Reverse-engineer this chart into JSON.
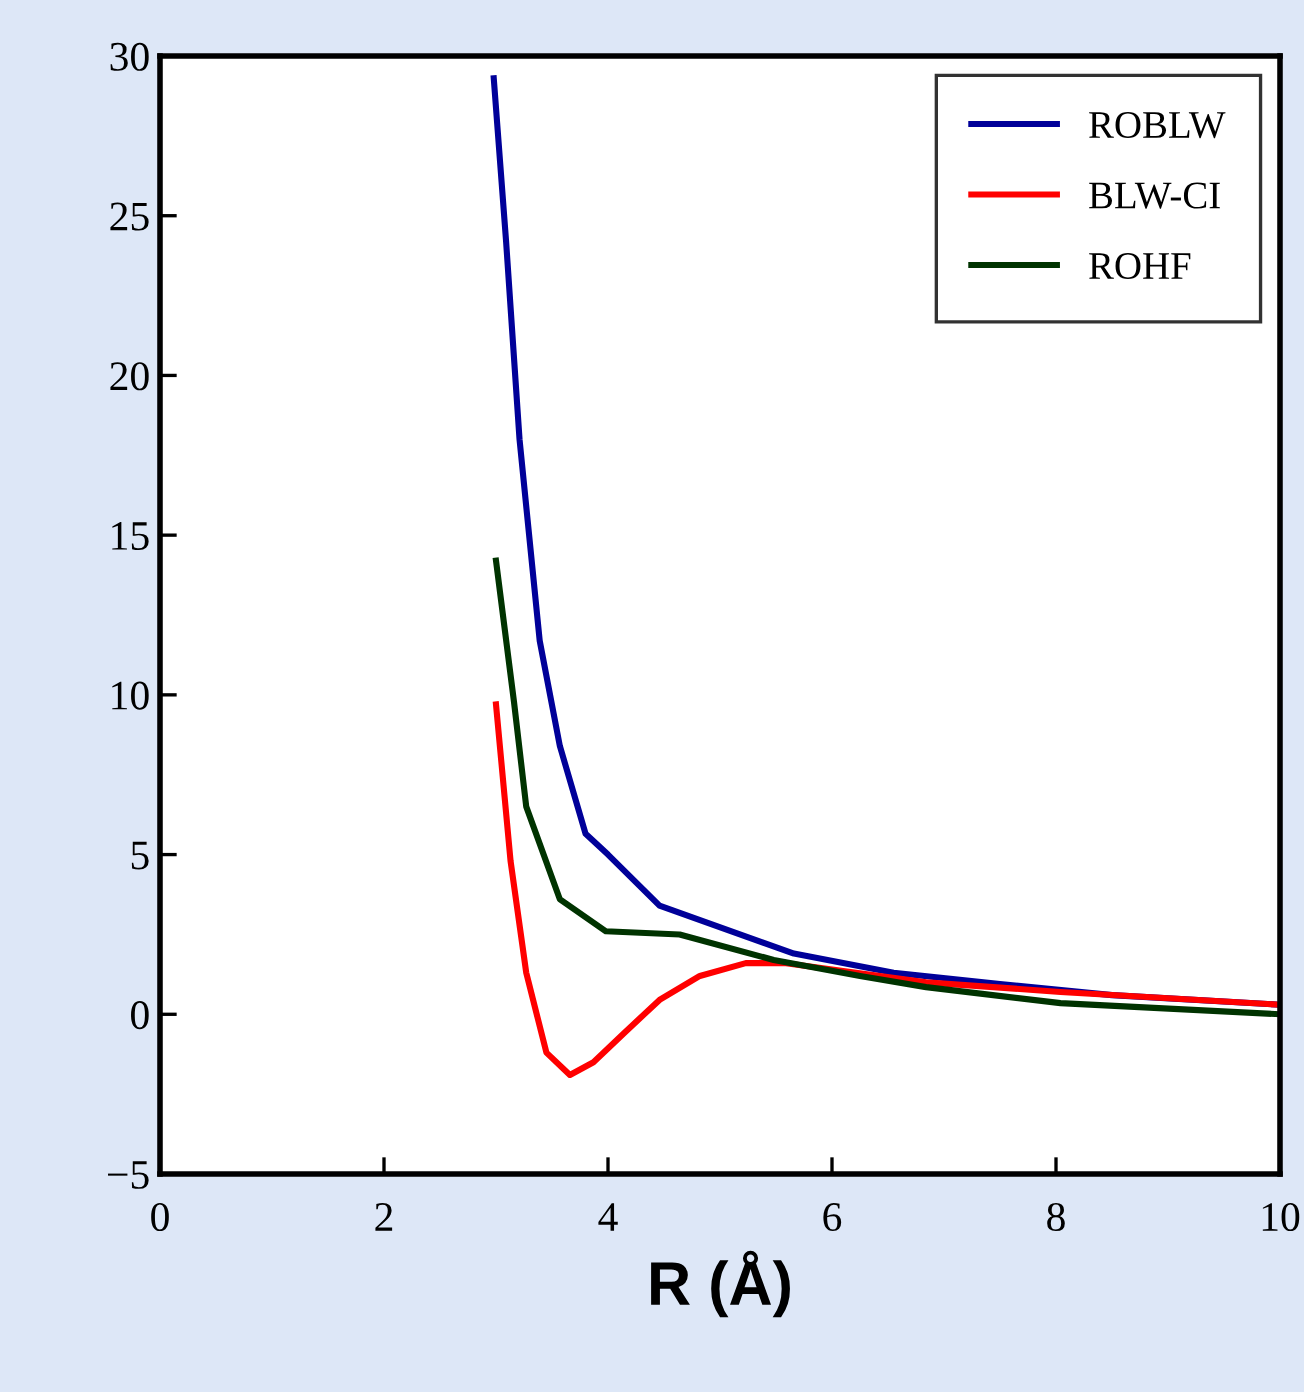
{
  "chart_data": {
    "type": "line",
    "xlabel": "R (Å)",
    "xlim": [
      0,
      10
    ],
    "xticks": [
      0,
      2,
      4,
      6,
      8,
      10
    ],
    "ylim": [
      -5,
      30
    ],
    "yticks": [
      -5,
      0,
      5,
      10,
      15,
      20,
      25,
      30
    ],
    "grid": false,
    "legend": "top right",
    "line_style": "solid",
    "marker": "none",
    "series": [
      {
        "name": "ROBLW",
        "color": "#000099",
        "x": [
          2.98,
          3.09,
          3.21,
          3.39,
          3.57,
          3.8,
          4.0,
          4.46,
          5.66,
          6.55,
          7.5,
          8.5,
          10
        ],
        "values": [
          29.3,
          24.2,
          18.0,
          11.7,
          8.4,
          5.65,
          5.0,
          3.4,
          1.9,
          1.3,
          0.95,
          0.6,
          0.3
        ]
      },
      {
        "name": "BLW-CI",
        "color": "#ff0000",
        "x": [
          3.0,
          3.13,
          3.27,
          3.45,
          3.66,
          3.87,
          4.14,
          4.46,
          4.82,
          5.23,
          5.59,
          6.84,
          8.04,
          10
        ],
        "values": [
          9.7,
          4.8,
          1.3,
          -1.2,
          -1.9,
          -1.5,
          -0.6,
          0.45,
          1.2,
          1.6,
          1.6,
          1.0,
          0.7,
          0.3
        ]
      },
      {
        "name": "ROHF",
        "color": "#003300",
        "x": [
          3.0,
          3.16,
          3.27,
          3.57,
          3.98,
          4.64,
          5.48,
          6.25,
          6.84,
          8.04,
          10
        ],
        "values": [
          14.2,
          9.8,
          6.5,
          3.6,
          2.6,
          2.5,
          1.7,
          1.2,
          0.85,
          0.35,
          0.0
        ]
      }
    ]
  }
}
